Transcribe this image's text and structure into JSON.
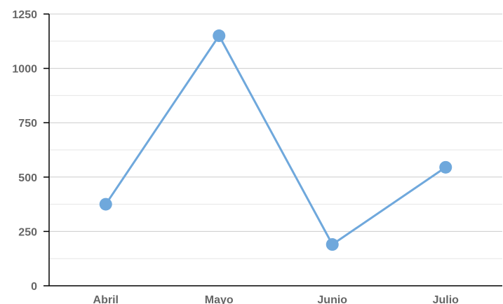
{
  "chart_data": {
    "type": "line",
    "categories": [
      "Abril",
      "Mayo",
      "Junio",
      "Julio"
    ],
    "values": [
      375,
      1150,
      190,
      545
    ],
    "title": "",
    "xlabel": "",
    "ylabel": "",
    "ylim": [
      0,
      1250
    ],
    "yticks": [
      0,
      250,
      500,
      750,
      1000,
      1250
    ],
    "minor_step": 125,
    "grid": true,
    "legend": "none",
    "color": "#6fa8dc"
  }
}
